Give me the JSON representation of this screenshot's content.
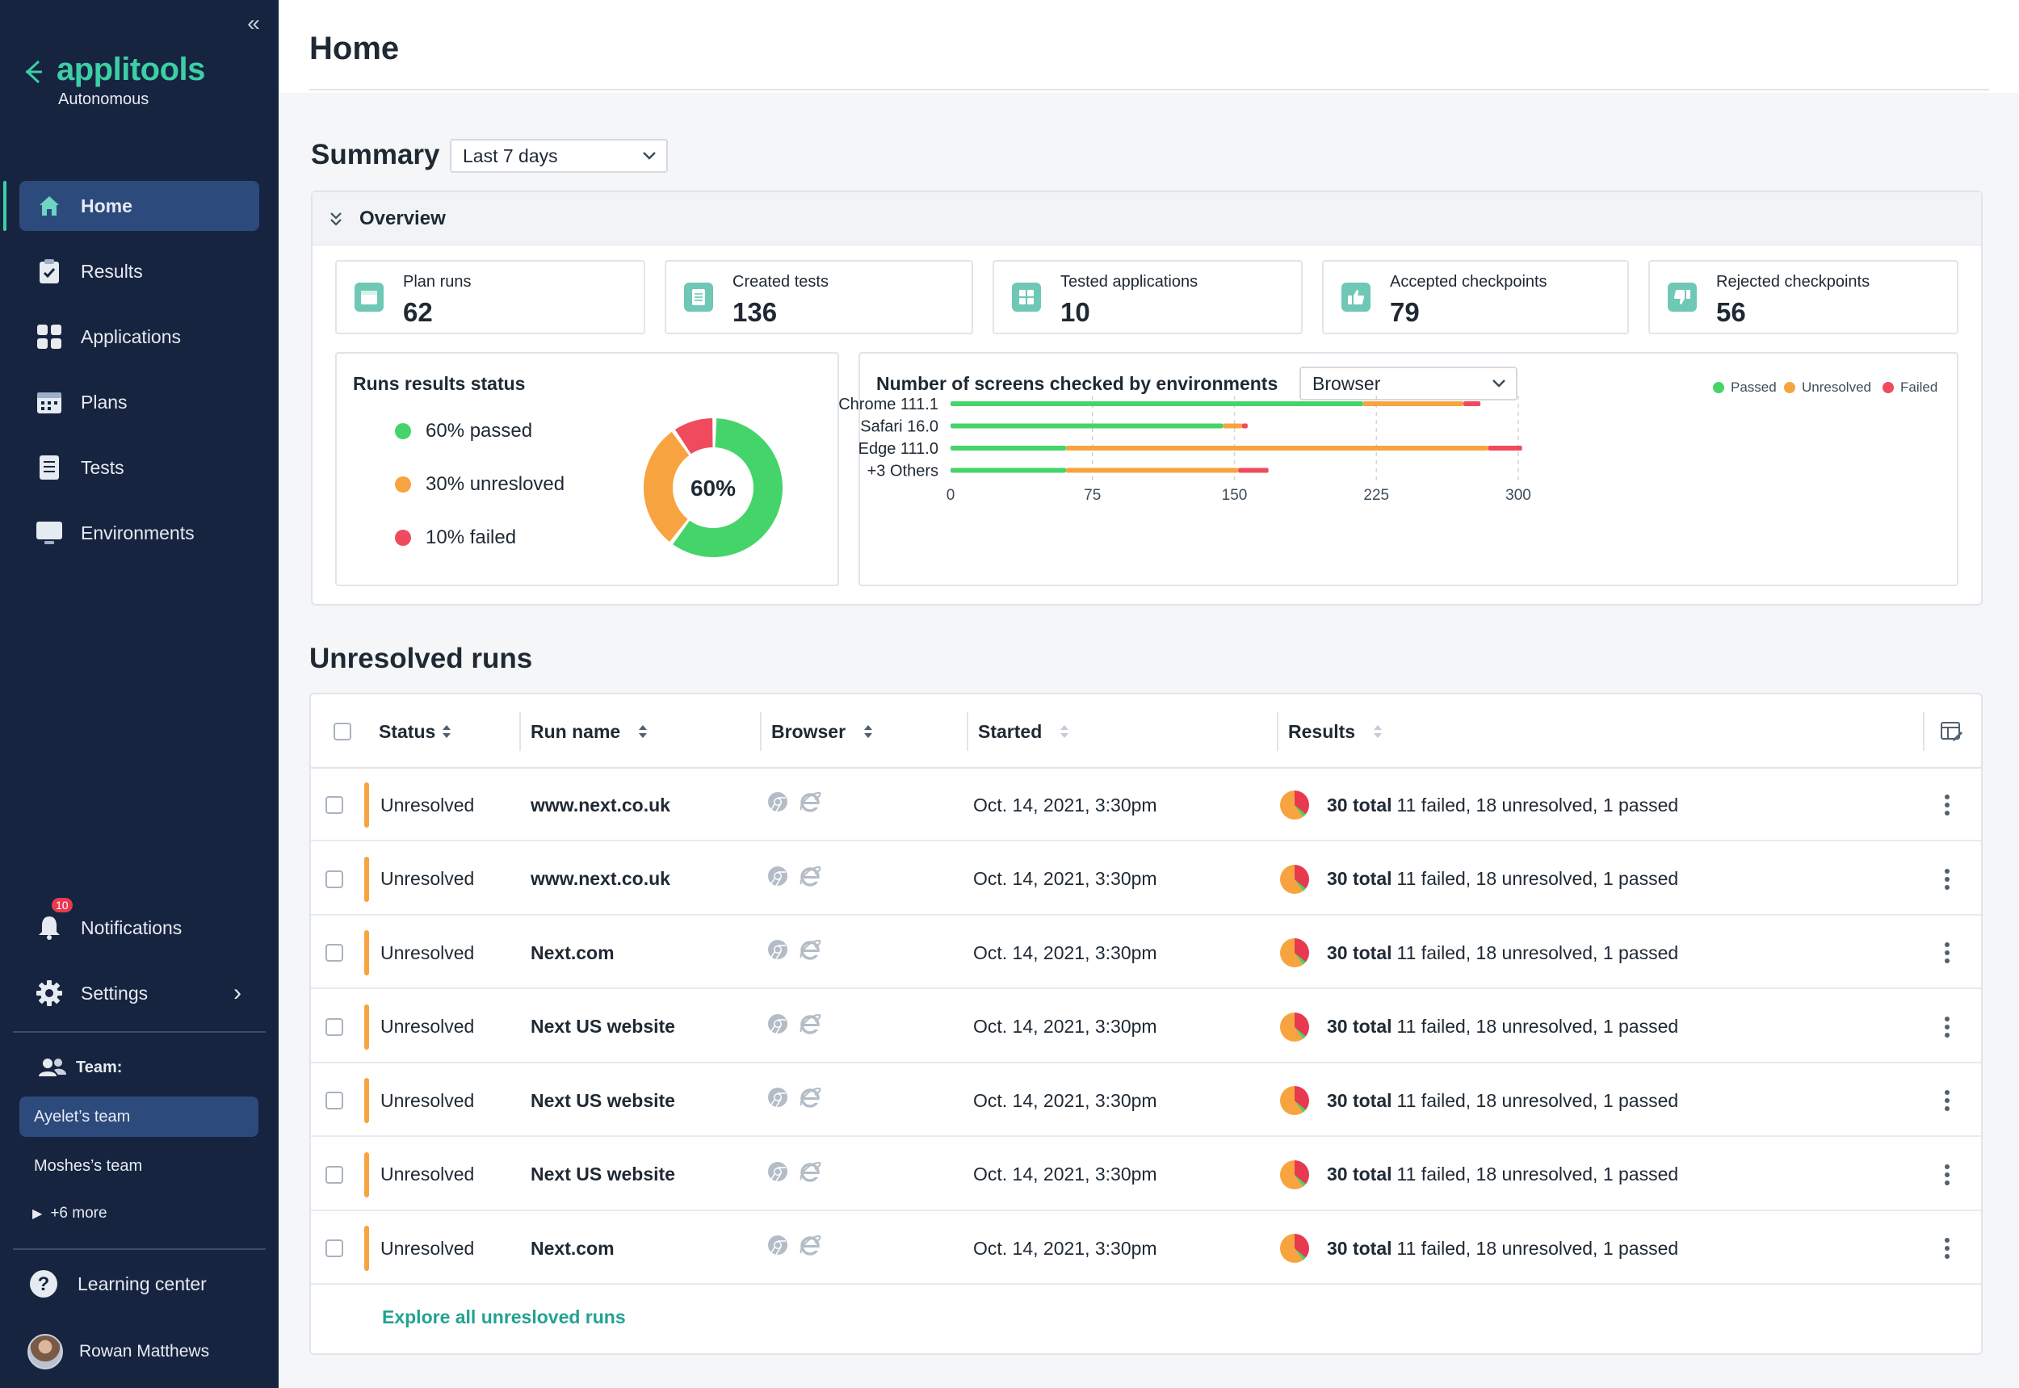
{
  "app": {
    "brand": "applitools",
    "brand_sub": "Autonomous",
    "accent": "#3ccfa5",
    "sidebar_bg": "#16243f"
  },
  "sidebar": {
    "items": [
      {
        "label": "Home",
        "icon": "home-icon",
        "active": true
      },
      {
        "label": "Results",
        "icon": "clipboard-check-icon"
      },
      {
        "label": "Applications",
        "icon": "grid-icon"
      },
      {
        "label": "Plans",
        "icon": "calendar-icon"
      },
      {
        "label": "Tests",
        "icon": "document-icon"
      },
      {
        "label": "Environments",
        "icon": "monitor-icon"
      }
    ],
    "notifications": {
      "label": "Notifications",
      "count": "10"
    },
    "settings": {
      "label": "Settings"
    },
    "team_label": "Team:",
    "teams": [
      "Ayelet’s team",
      "Moshes’s team"
    ],
    "more_teams": "+6 more",
    "learning_center": "Learning center",
    "user_name": "Rowan Matthews"
  },
  "header": {
    "title": "Home"
  },
  "summary": {
    "title": "Summary",
    "period": "Last 7 days",
    "overview_label": "Overview",
    "stats": [
      {
        "label": "Plan runs",
        "value": "62"
      },
      {
        "label": "Created tests",
        "value": "136"
      },
      {
        "label": "Tested applications",
        "value": "10"
      },
      {
        "label": "Accepted checkpoints",
        "value": "79"
      },
      {
        "label": "Rejected checkpoints",
        "value": "56"
      }
    ],
    "runs_status": {
      "title": "Runs results status",
      "center_label": "60%",
      "legend": [
        {
          "label": "60% passed",
          "color": "#45d46a",
          "value": 60
        },
        {
          "label": "30% unresloved",
          "color": "#f7a440",
          "value": 30
        },
        {
          "label": "10% failed",
          "color": "#f04a5e",
          "value": 10
        }
      ]
    },
    "environments": {
      "title": "Number of screens checked by environments",
      "group_by": "Browser",
      "legend": [
        "Passed",
        "Unresolved",
        "Failed"
      ]
    }
  },
  "chart_data": {
    "type": "bar",
    "orientation": "horizontal",
    "stacked": true,
    "categories": [
      "Chrome 111.1",
      "Safari 16.0",
      "Edge 111.0",
      "+3 Others"
    ],
    "series": [
      {
        "name": "Passed",
        "color": "#45d46a",
        "values": [
          218,
          144,
          61,
          61
        ]
      },
      {
        "name": "Unresolved",
        "color": "#f7a440",
        "values": [
          53,
          10,
          223,
          91
        ]
      },
      {
        "name": "Failed",
        "color": "#f04a5e",
        "values": [
          9,
          3,
          18,
          16
        ]
      }
    ],
    "xticks": [
      "0",
      "75",
      "150",
      "225",
      "300"
    ],
    "xlim": [
      0,
      300
    ],
    "grid": "vertical-dashed"
  },
  "unresolved": {
    "title": "Unresolved runs",
    "columns": [
      "Status",
      "Run name",
      "Browser",
      "Started",
      "Results"
    ],
    "rows": [
      {
        "status": "Unresolved",
        "name": "www.next.co.uk",
        "started": "Oct. 14, 2021, 3:30pm",
        "total": "30 total",
        "detail": "11 failed, 18 unresolved, 1 passed"
      },
      {
        "status": "Unresolved",
        "name": "www.next.co.uk",
        "started": "Oct. 14, 2021, 3:30pm",
        "total": "30 total",
        "detail": "11 failed, 18 unresolved, 1 passed"
      },
      {
        "status": "Unresolved",
        "name": "Next.com",
        "started": "Oct. 14, 2021, 3:30pm",
        "total": "30 total",
        "detail": "11 failed, 18 unresolved, 1 passed"
      },
      {
        "status": "Unresolved",
        "name": "Next US website",
        "started": "Oct. 14, 2021, 3:30pm",
        "total": "30 total",
        "detail": "11 failed, 18 unresolved, 1 passed"
      },
      {
        "status": "Unresolved",
        "name": "Next US website",
        "started": "Oct. 14, 2021, 3:30pm",
        "total": "30 total",
        "detail": "11 failed, 18 unresolved, 1 passed"
      },
      {
        "status": "Unresolved",
        "name": "Next US website",
        "started": "Oct. 14, 2021, 3:30pm",
        "total": "30 total",
        "detail": "11 failed, 18 unresolved, 1 passed"
      },
      {
        "status": "Unresolved",
        "name": "Next.com",
        "started": "Oct. 14, 2021, 3:30pm",
        "total": "30 total",
        "detail": "11 failed, 18 unresolved, 1 passed"
      }
    ],
    "explore_label": "Explore all unresloved runs"
  }
}
